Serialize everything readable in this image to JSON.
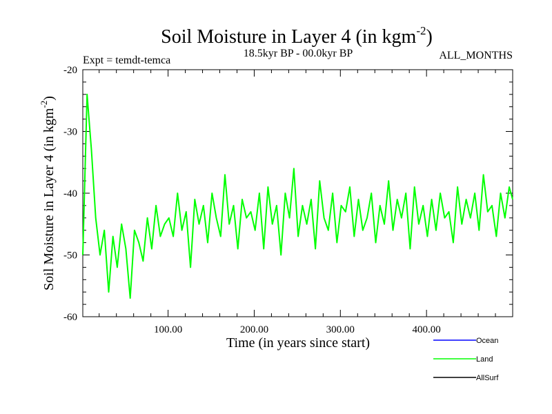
{
  "chart_data": {
    "type": "line",
    "title": "Soil Moisture in Layer 4 (in kgm",
    "title_sup": "-2",
    "title_close": ")",
    "subtitle_left": "Expt = temdt-temca",
    "subtitle_center": "18.5kyr BP - 00.0kyr BP",
    "subtitle_right": "ALL_MONTHS",
    "xlabel": "Time (in years since start)",
    "ylabel": "Soil Moisture in Layer 4 (in kgm",
    "ylabel_sup": "-2",
    "ylabel_close": ")",
    "xlim": [
      1,
      500
    ],
    "ylim": [
      -60,
      -20
    ],
    "x_ticks": [
      {
        "value": 100,
        "label": "100.00"
      },
      {
        "value": 200,
        "label": "200.00"
      },
      {
        "value": 300,
        "label": "300.00"
      },
      {
        "value": 400,
        "label": "400.00"
      }
    ],
    "y_ticks": [
      {
        "value": -20,
        "label": "-20"
      },
      {
        "value": -30,
        "label": "-30"
      },
      {
        "value": -40,
        "label": "-40"
      },
      {
        "value": -50,
        "label": "-50"
      },
      {
        "value": -60,
        "label": "-60"
      }
    ],
    "legend": {
      "placement": "bottom-right",
      "entries": [
        {
          "name": "Ocean",
          "color": "#0000ff"
        },
        {
          "name": "Land",
          "color": "#00ff00"
        },
        {
          "name": "AllSurf",
          "color": "#000000"
        }
      ]
    },
    "series": [
      {
        "name": "Land",
        "color": "#00ff00",
        "x": [
          1,
          6,
          11,
          16,
          21,
          26,
          31,
          36,
          41,
          46,
          51,
          56,
          61,
          66,
          71,
          76,
          81,
          86,
          91,
          96,
          101,
          106,
          111,
          116,
          121,
          126,
          131,
          136,
          141,
          146,
          151,
          156,
          161,
          166,
          171,
          176,
          181,
          186,
          191,
          196,
          201,
          206,
          211,
          216,
          221,
          226,
          231,
          236,
          241,
          246,
          251,
          256,
          261,
          266,
          271,
          276,
          281,
          286,
          291,
          296,
          301,
          306,
          311,
          316,
          321,
          326,
          331,
          336,
          341,
          346,
          351,
          356,
          361,
          366,
          371,
          376,
          381,
          386,
          391,
          396,
          401,
          406,
          411,
          416,
          421,
          426,
          431,
          436,
          441,
          446,
          451,
          456,
          461,
          466,
          471,
          476,
          481,
          486,
          491,
          496,
          500
        ],
        "values": [
          -50,
          -24,
          -33,
          -44,
          -50,
          -46,
          -56,
          -47,
          -52,
          -45,
          -49,
          -57,
          -46,
          -48,
          -51,
          -44,
          -49,
          -42,
          -47,
          -45,
          -44,
          -47,
          -40,
          -46,
          -43,
          -52,
          -41,
          -45,
          -42,
          -48,
          -40,
          -44,
          -47,
          -37,
          -45,
          -42,
          -49,
          -41,
          -44,
          -43,
          -46,
          -40,
          -49,
          -39,
          -45,
          -42,
          -50,
          -40,
          -44,
          -36,
          -47,
          -42,
          -45,
          -41,
          -49,
          -38,
          -44,
          -46,
          -40,
          -48,
          -42,
          -43,
          -39,
          -47,
          -41,
          -46,
          -44,
          -40,
          -48,
          -42,
          -45,
          -38,
          -46,
          -41,
          -44,
          -40,
          -49,
          -39,
          -45,
          -42,
          -47,
          -41,
          -46,
          -40,
          -44,
          -43,
          -48,
          -39,
          -45,
          -41,
          -44,
          -40,
          -46,
          -37,
          -43,
          -42,
          -47,
          -40,
          -44,
          -39,
          -41
        ]
      }
    ]
  }
}
